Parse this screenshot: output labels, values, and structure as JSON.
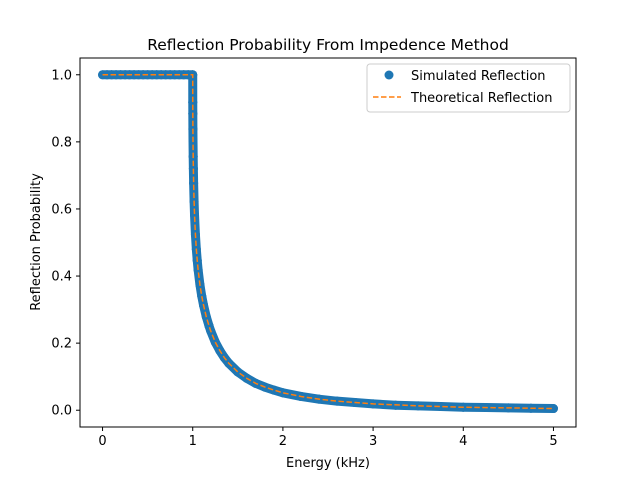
{
  "chart_data": {
    "type": "scatter",
    "title": "Reflection Probability From Impedence Method",
    "xlabel": "Energy (kHz)",
    "ylabel": "Reflection Probability",
    "xlim": [
      -0.25,
      5.25
    ],
    "ylim": [
      -0.05,
      1.05
    ],
    "xticks": [
      0,
      1,
      2,
      3,
      4,
      5
    ],
    "xtick_labels": [
      "0",
      "1",
      "2",
      "3",
      "4",
      "5"
    ],
    "yticks": [
      0.0,
      0.2,
      0.4,
      0.6,
      0.8,
      1.0
    ],
    "ytick_labels": [
      "0.0",
      "0.2",
      "0.4",
      "0.6",
      "0.8",
      "1.0"
    ],
    "grid": false,
    "legend_position": "top-right",
    "series": [
      {
        "name": "Simulated Reflection",
        "kind": "scatter",
        "marker": "circle",
        "color": "#1f77b4",
        "x": [
          0.0,
          0.05,
          0.1,
          0.15,
          0.2,
          0.25,
          0.3,
          0.35,
          0.4,
          0.45,
          0.5,
          0.55,
          0.6,
          0.65,
          0.7,
          0.75,
          0.8,
          0.85,
          0.9,
          0.95,
          1.0,
          1.0005,
          1.001,
          1.002,
          1.003,
          1.005,
          1.007,
          1.01,
          1.015,
          1.02,
          1.03,
          1.04,
          1.05,
          1.06,
          1.08,
          1.1,
          1.12,
          1.15,
          1.18,
          1.2,
          1.25,
          1.3,
          1.35,
          1.4,
          1.5,
          1.6,
          1.7,
          1.8,
          1.9,
          2.0,
          2.2,
          2.4,
          2.6,
          2.8,
          3.0,
          3.25,
          3.5,
          3.75,
          4.0,
          4.25,
          4.5,
          4.75,
          5.0
        ],
        "y": [
          1.0,
          1.0,
          1.0,
          1.0,
          1.0,
          1.0,
          1.0,
          1.0,
          1.0,
          1.0,
          1.0,
          1.0,
          1.0,
          1.0,
          1.0,
          1.0,
          1.0,
          1.0,
          1.0,
          1.0,
          1.0,
          0.918,
          0.884,
          0.838,
          0.805,
          0.756,
          0.72,
          0.677,
          0.623,
          0.582,
          0.523,
          0.48,
          0.446,
          0.418,
          0.374,
          0.34,
          0.313,
          0.279,
          0.252,
          0.236,
          0.203,
          0.178,
          0.157,
          0.14,
          0.114,
          0.095,
          0.08,
          0.069,
          0.06,
          0.052,
          0.041,
          0.033,
          0.027,
          0.023,
          0.019,
          0.015,
          0.013,
          0.011,
          0.009,
          0.008,
          0.007,
          0.006,
          0.005
        ]
      },
      {
        "name": "Theoretical Reflection",
        "kind": "line",
        "linestyle": "dashed",
        "color": "#ff7f0e",
        "x": [
          0.0,
          0.5,
          0.999,
          1.0,
          1.0005,
          1.001,
          1.002,
          1.003,
          1.005,
          1.007,
          1.01,
          1.015,
          1.02,
          1.03,
          1.04,
          1.05,
          1.06,
          1.08,
          1.1,
          1.12,
          1.15,
          1.18,
          1.2,
          1.25,
          1.3,
          1.35,
          1.4,
          1.5,
          1.6,
          1.7,
          1.8,
          1.9,
          2.0,
          2.2,
          2.4,
          2.6,
          2.8,
          3.0,
          3.5,
          4.0,
          4.5,
          5.0
        ],
        "y": [
          1.0,
          1.0,
          1.0,
          1.0,
          0.918,
          0.884,
          0.838,
          0.805,
          0.756,
          0.72,
          0.677,
          0.623,
          0.582,
          0.523,
          0.48,
          0.446,
          0.418,
          0.374,
          0.34,
          0.313,
          0.279,
          0.252,
          0.236,
          0.203,
          0.178,
          0.157,
          0.14,
          0.114,
          0.095,
          0.08,
          0.069,
          0.06,
          0.052,
          0.041,
          0.033,
          0.027,
          0.023,
          0.019,
          0.013,
          0.009,
          0.007,
          0.005
        ]
      }
    ]
  }
}
